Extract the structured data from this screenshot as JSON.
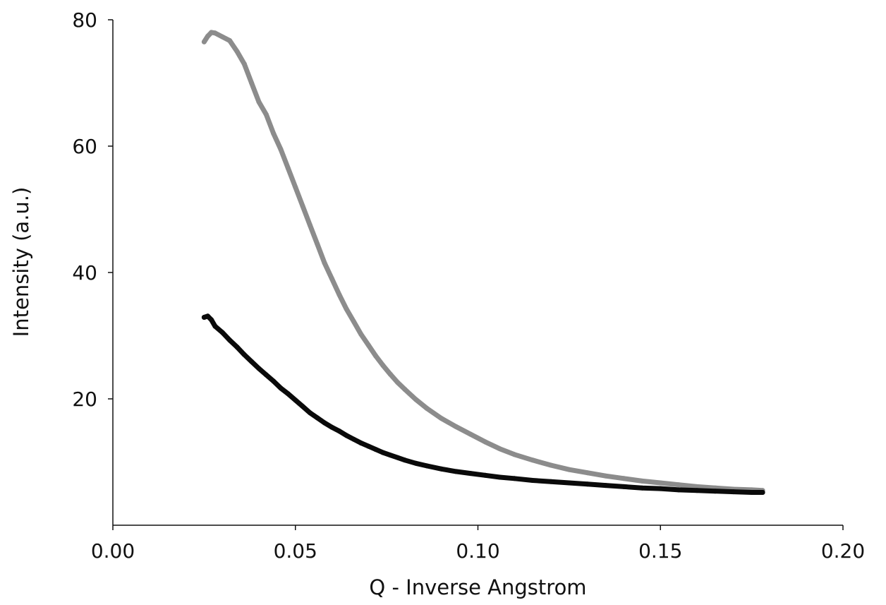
{
  "chart_data": {
    "type": "line",
    "title": "",
    "xlabel": "Q - Inverse Angstrom",
    "ylabel": "Intensity (a.u.)",
    "xlim": [
      0,
      0.2
    ],
    "ylim": [
      0,
      80
    ],
    "x_ticks": [
      0.0,
      0.05,
      0.1,
      0.15,
      0.2
    ],
    "x_tick_labels": [
      "0.00",
      "0.05",
      "0.10",
      "0.15",
      "0.20"
    ],
    "y_ticks": [
      20,
      40,
      60,
      80
    ],
    "y_tick_labels": [
      "20",
      "40",
      "60",
      "80"
    ],
    "grid": false,
    "legend": "none",
    "series": [
      {
        "color": "#8c8c8c",
        "x": [
          0.025,
          0.026,
          0.027,
          0.028,
          0.03,
          0.032,
          0.034,
          0.036,
          0.038,
          0.04,
          0.042,
          0.044,
          0.046,
          0.048,
          0.05,
          0.052,
          0.054,
          0.056,
          0.058,
          0.06,
          0.062,
          0.064,
          0.066,
          0.068,
          0.07,
          0.072,
          0.074,
          0.076,
          0.078,
          0.08,
          0.083,
          0.086,
          0.09,
          0.094,
          0.098,
          0.102,
          0.106,
          0.11,
          0.115,
          0.12,
          0.125,
          0.13,
          0.135,
          0.14,
          0.145,
          0.15,
          0.155,
          0.16,
          0.165,
          0.17,
          0.175,
          0.178
        ],
        "y": [
          76.5,
          77.4,
          78.0,
          77.9,
          77.3,
          76.7,
          75.0,
          73.0,
          70.0,
          67.0,
          65.0,
          62.0,
          59.5,
          56.5,
          53.5,
          50.5,
          47.5,
          44.5,
          41.5,
          39.0,
          36.5,
          34.2,
          32.2,
          30.2,
          28.5,
          26.8,
          25.3,
          23.9,
          22.6,
          21.5,
          19.9,
          18.5,
          16.9,
          15.6,
          14.4,
          13.2,
          12.1,
          11.2,
          10.3,
          9.5,
          8.8,
          8.3,
          7.8,
          7.4,
          7.0,
          6.7,
          6.4,
          6.1,
          5.9,
          5.7,
          5.6,
          5.5
        ]
      },
      {
        "color": "#0a0a0a",
        "x": [
          0.025,
          0.026,
          0.027,
          0.028,
          0.03,
          0.032,
          0.034,
          0.036,
          0.038,
          0.04,
          0.042,
          0.044,
          0.046,
          0.048,
          0.05,
          0.052,
          0.054,
          0.056,
          0.058,
          0.06,
          0.062,
          0.064,
          0.066,
          0.068,
          0.07,
          0.072,
          0.074,
          0.076,
          0.078,
          0.08,
          0.083,
          0.086,
          0.09,
          0.094,
          0.098,
          0.102,
          0.106,
          0.11,
          0.115,
          0.12,
          0.125,
          0.13,
          0.135,
          0.14,
          0.145,
          0.15,
          0.155,
          0.16,
          0.165,
          0.17,
          0.175,
          0.178
        ],
        "y": [
          32.9,
          33.1,
          32.5,
          31.5,
          30.5,
          29.3,
          28.2,
          27.0,
          25.9,
          24.8,
          23.8,
          22.8,
          21.7,
          20.8,
          19.8,
          18.8,
          17.8,
          17.0,
          16.2,
          15.5,
          14.9,
          14.2,
          13.6,
          13.0,
          12.5,
          12.0,
          11.5,
          11.1,
          10.7,
          10.3,
          9.8,
          9.4,
          8.9,
          8.5,
          8.2,
          7.9,
          7.6,
          7.4,
          7.1,
          6.9,
          6.7,
          6.5,
          6.3,
          6.1,
          5.9,
          5.8,
          5.6,
          5.5,
          5.4,
          5.3,
          5.2,
          5.2
        ]
      }
    ]
  }
}
